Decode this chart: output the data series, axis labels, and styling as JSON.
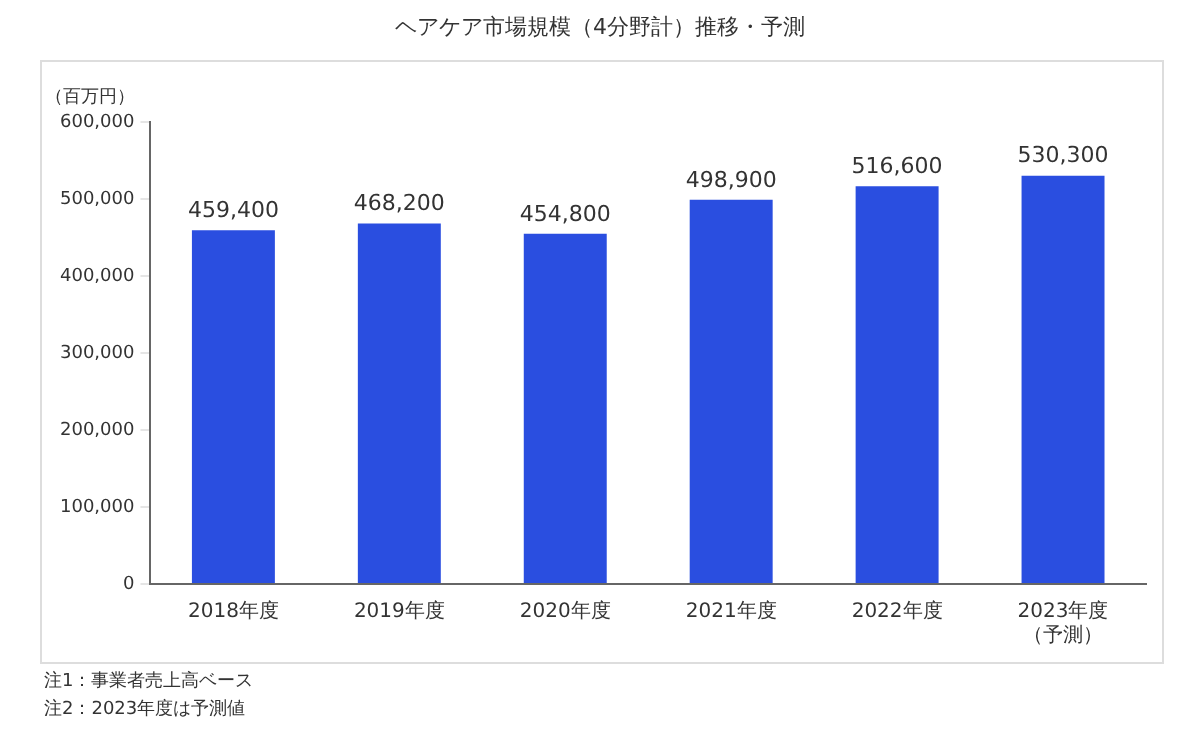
{
  "chart_data": {
    "type": "bar",
    "title": "ヘアケア市場規模（4分野計）推移・予測",
    "ylabel": "（百万円）",
    "categories": [
      "2018年度",
      "2019年度",
      "2020年度",
      "2021年度",
      "2022年度",
      "2023年度（予測）"
    ],
    "values": [
      459400,
      468200,
      454800,
      498900,
      516600,
      530300
    ],
    "color": "#2a4ee0",
    "ylim": [
      0,
      600000
    ],
    "yticks": [
      0,
      {
        "value": 100000,
        "label": "100,000"
      },
      {
        "value": 200000,
        "label": "200,000"
      },
      {
        "value": 300000,
        "label": "300,000"
      },
      {
        "value": 400000,
        "label": "400,000"
      },
      {
        "value": 500000,
        "label": "500,000"
      },
      {
        "value": 600000,
        "label": "600,000"
      }
    ],
    "value_labels": [
      "459,400",
      "468,200",
      "454,800",
      "498,900",
      "516,600",
      "530,300"
    ],
    "grid": false,
    "legend": false,
    "annotations": [
      "注1：事業者売上高ベース",
      "注2：2023年度は予測値"
    ]
  }
}
